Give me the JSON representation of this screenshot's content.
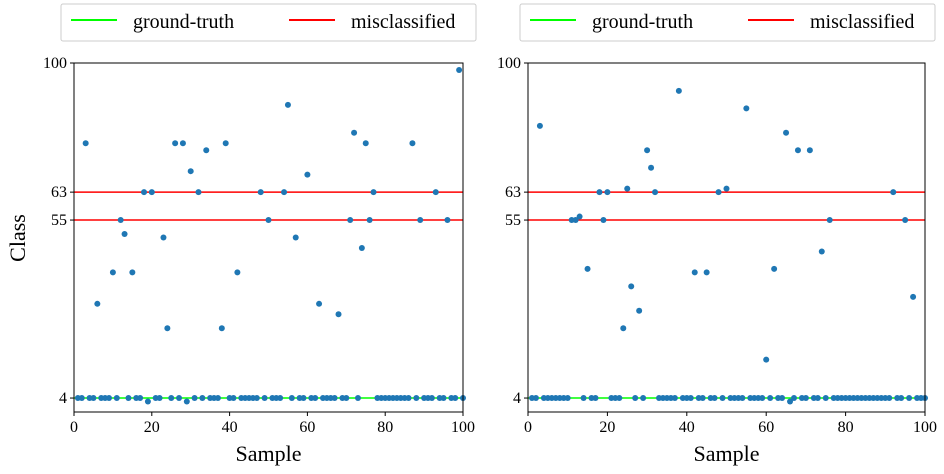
{
  "colors": {
    "ground_truth": "#00ff00",
    "misclassified": "#ff0000",
    "points": "#1f77b4",
    "axes": "#000000",
    "legend_border": "#cccccc"
  },
  "chart_data": [
    {
      "type": "scatter",
      "panel": "left",
      "xlabel": "Sample",
      "ylabel": "Class",
      "xlim": [
        0,
        100
      ],
      "ylim": [
        0,
        100
      ],
      "xticks": [
        0,
        20,
        40,
        60,
        80,
        100
      ],
      "yticks": [
        4,
        55,
        63,
        100
      ],
      "legend": {
        "position": "top",
        "entries": [
          "ground-truth",
          "misclassified"
        ]
      },
      "ground_truth": 4,
      "misclassified_lines": [
        55,
        63
      ],
      "points": {
        "x": [
          1,
          2,
          3,
          4,
          5,
          6,
          7,
          8,
          9,
          10,
          11,
          12,
          13,
          14,
          15,
          16,
          17,
          18,
          19,
          20,
          21,
          22,
          23,
          24,
          25,
          26,
          27,
          28,
          29,
          30,
          31,
          32,
          33,
          34,
          35,
          36,
          37,
          38,
          39,
          40,
          41,
          42,
          43,
          44,
          45,
          46,
          47,
          48,
          49,
          50,
          51,
          52,
          53,
          54,
          55,
          56,
          57,
          58,
          59,
          60,
          61,
          62,
          63,
          64,
          65,
          66,
          67,
          68,
          69,
          70,
          71,
          72,
          73,
          74,
          75,
          76,
          77,
          78,
          79,
          80,
          81,
          82,
          83,
          84,
          85,
          86,
          87,
          88,
          89,
          90,
          91,
          92,
          93,
          94,
          95,
          96,
          97,
          98,
          99,
          100
        ],
        "y": [
          4,
          4,
          77,
          4,
          4,
          31,
          4,
          4,
          4,
          40,
          4,
          55,
          51,
          4,
          40,
          4,
          4,
          63,
          3,
          63,
          4,
          4,
          50,
          24,
          4,
          77,
          4,
          77,
          3,
          69,
          4,
          63,
          4,
          75,
          4,
          4,
          4,
          24,
          77,
          4,
          4,
          40,
          4,
          4,
          4,
          4,
          4,
          63,
          4,
          55,
          4,
          4,
          4,
          63,
          88,
          4,
          50,
          4,
          4,
          68,
          4,
          4,
          31,
          4,
          4,
          4,
          4,
          28,
          4,
          4,
          55,
          80,
          4,
          47,
          77,
          55,
          63,
          4,
          4,
          4,
          4,
          4,
          4,
          4,
          4,
          4,
          77,
          4,
          55,
          4,
          4,
          4,
          63,
          4,
          4,
          55,
          4,
          4,
          98,
          4
        ]
      }
    },
    {
      "type": "scatter",
      "panel": "right",
      "xlabel": "Sample",
      "ylabel": "",
      "xlim": [
        0,
        100
      ],
      "ylim": [
        0,
        100
      ],
      "xticks": [
        0,
        20,
        40,
        60,
        80,
        100
      ],
      "yticks": [
        4,
        55,
        63,
        100
      ],
      "legend": {
        "position": "top",
        "entries": [
          "ground-truth",
          "misclassified"
        ]
      },
      "ground_truth": 4,
      "misclassified_lines": [
        55,
        63
      ],
      "points": {
        "x": [
          1,
          2,
          3,
          4,
          5,
          6,
          7,
          8,
          9,
          10,
          11,
          12,
          13,
          14,
          15,
          16,
          17,
          18,
          19,
          20,
          21,
          22,
          23,
          24,
          25,
          26,
          27,
          28,
          29,
          30,
          31,
          32,
          33,
          34,
          35,
          36,
          37,
          38,
          39,
          40,
          41,
          42,
          43,
          44,
          45,
          46,
          47,
          48,
          49,
          50,
          51,
          52,
          53,
          54,
          55,
          56,
          57,
          58,
          59,
          60,
          61,
          62,
          63,
          64,
          65,
          66,
          67,
          68,
          69,
          70,
          71,
          72,
          73,
          74,
          75,
          76,
          77,
          78,
          79,
          80,
          81,
          82,
          83,
          84,
          85,
          86,
          87,
          88,
          89,
          90,
          91,
          92,
          93,
          94,
          95,
          96,
          97,
          98,
          99,
          100
        ],
        "y": [
          4,
          4,
          82,
          4,
          4,
          4,
          4,
          4,
          4,
          4,
          55,
          55,
          56,
          4,
          41,
          4,
          4,
          63,
          55,
          63,
          4,
          4,
          4,
          24,
          64,
          36,
          4,
          29,
          4,
          75,
          70,
          63,
          4,
          4,
          4,
          4,
          4,
          92,
          4,
          4,
          4,
          40,
          4,
          4,
          40,
          4,
          4,
          63,
          4,
          64,
          4,
          4,
          4,
          4,
          87,
          4,
          4,
          4,
          4,
          15,
          4,
          41,
          4,
          4,
          80,
          3,
          4,
          75,
          4,
          4,
          75,
          4,
          4,
          46,
          4,
          55,
          4,
          4,
          4,
          4,
          4,
          4,
          4,
          4,
          4,
          4,
          4,
          4,
          4,
          4,
          4,
          63,
          4,
          4,
          55,
          4,
          33,
          4,
          4,
          4
        ]
      }
    }
  ]
}
